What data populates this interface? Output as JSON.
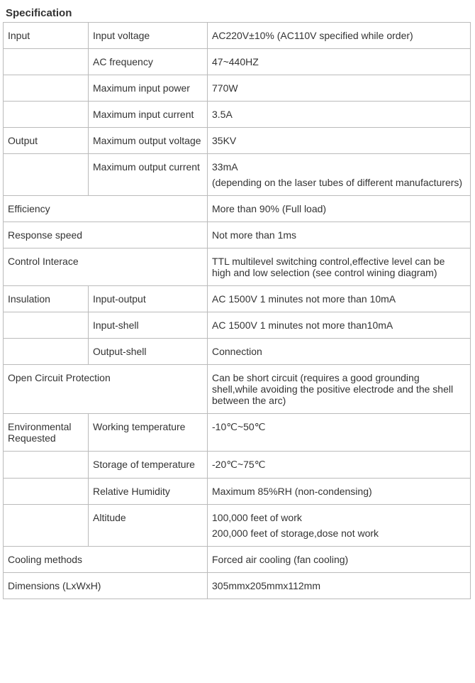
{
  "title": "Specification",
  "rows": {
    "input": {
      "label": "Input",
      "voltage_label": "Input voltage",
      "voltage_value": "AC220V±10% (AC110V specified while order)",
      "freq_label": "AC frequency",
      "freq_value": "47~440HZ",
      "maxpower_label": "Maximum input power",
      "maxpower_value": "770W",
      "maxcurrent_label": "Maximum input current",
      "maxcurrent_value": "3.5A"
    },
    "output": {
      "label": "Output",
      "maxv_label": "Maximum output voltage",
      "maxv_value": "35KV",
      "maxc_label": "Maximum output current",
      "maxc_value1": "33mA",
      "maxc_value2": "(depending on the laser tubes of different manufacturers)"
    },
    "efficiency": {
      "label": "Efficiency",
      "value": "More than 90% (Full load)"
    },
    "response": {
      "label": "Response speed",
      "value": "Not more than 1ms"
    },
    "control": {
      "label": "Control Interace",
      "value": "TTL multilevel switching control,effective level can be high and low selection (see control wining diagram)"
    },
    "insulation": {
      "label": "Insulation",
      "io_label": "Input-output",
      "io_value": "AC 1500V 1 minutes not more than 10mA",
      "is_label": "Input-shell",
      "is_value": "AC 1500V 1 minutes not more than10mA",
      "os_label": "Output-shell",
      "os_value": "Connection"
    },
    "ocp": {
      "label": "Open Circuit Protection",
      "value": "Can be short circuit (requires a good grounding shell,while avoiding the positive electrode and the shell between the arc)"
    },
    "env": {
      "label": "Environmental Requested",
      "wt_label": "Working temperature",
      "wt_value": "-10℃~50℃",
      "st_label": "Storage of temperature",
      "st_value": "-20℃~75℃",
      "rh_label": "Relative Humidity",
      "rh_value": "Maximum 85%RH (non-condensing)",
      "alt_label": "Altitude",
      "alt_value1": "100,000 feet of work",
      "alt_value2": "200,000 feet of storage,dose not work"
    },
    "cooling": {
      "label": "Cooling methods",
      "value": "Forced air cooling (fan cooling)"
    },
    "dim": {
      "label": "Dimensions (LxWxH)",
      "value": "305mmx205mmx112mm"
    }
  }
}
